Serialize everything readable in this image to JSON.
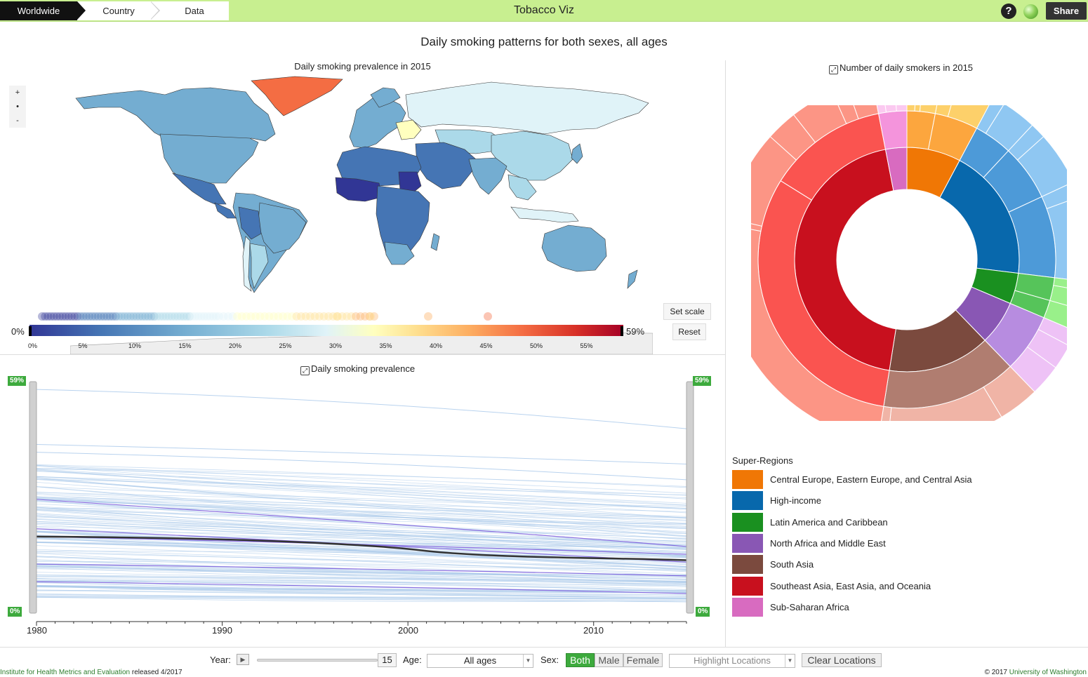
{
  "nav": {
    "crumbs": [
      "Worldwide",
      "Country",
      "Data"
    ],
    "app_title": "Tobacco Viz",
    "help_label": "?",
    "share_label": "Share"
  },
  "main_title": "Daily smoking patterns for both sexes, all ages",
  "map_panel": {
    "title": "Daily smoking prevalence in 2015",
    "zoom": [
      "+",
      "•",
      "-"
    ],
    "legend_min": "0%",
    "legend_max": "59%",
    "ticks": [
      "0%",
      "5%",
      "10%",
      "15%",
      "20%",
      "25%",
      "30%",
      "35%",
      "40%",
      "45%",
      "50%",
      "55%"
    ],
    "set_scale_label": "Set scale",
    "reset_label": "Reset",
    "colors": [
      "#313695",
      "#4575b4",
      "#74add1",
      "#abd9e9",
      "#e0f3f8",
      "#ffffbf",
      "#fee090",
      "#fdae61",
      "#f46d43",
      "#d73027",
      "#a50026"
    ]
  },
  "line_panel": {
    "title": "Daily smoking prevalence",
    "badge_top": "59%",
    "badge_bottom": "0%",
    "years": [
      "1980",
      "1990",
      "2000",
      "2010"
    ]
  },
  "sunburst_panel": {
    "title": "Number of daily smokers in 2015"
  },
  "legend": {
    "title": "Super-Regions",
    "items": [
      {
        "label": "Central Europe, Eastern Europe, and Central Asia",
        "color": "#f07705"
      },
      {
        "label": "High-income",
        "color": "#0868ac"
      },
      {
        "label": "Latin America and Caribbean",
        "color": "#1a9020"
      },
      {
        "label": "North Africa and Middle East",
        "color": "#8957b4"
      },
      {
        "label": "South Asia",
        "color": "#7b4a3e"
      },
      {
        "label": "Southeast Asia, East Asia, and Oceania",
        "color": "#c8101e"
      },
      {
        "label": "Sub-Saharan Africa",
        "color": "#d86bc0"
      }
    ]
  },
  "controls": {
    "year_label": "Year:",
    "year_value": "15",
    "age_label": "Age:",
    "age_value": "All ages",
    "sex_label": "Sex:",
    "sex_options": [
      "Both",
      "Male",
      "Female"
    ],
    "highlight_placeholder": "Highlight Locations",
    "clear_label": "Clear Locations"
  },
  "footer": {
    "left_link": "Institute for Health Metrics and Evaluation",
    "left_rest": "released 4/2017",
    "right_prefix": "© 2017",
    "right_link": "University of Washington"
  }
}
